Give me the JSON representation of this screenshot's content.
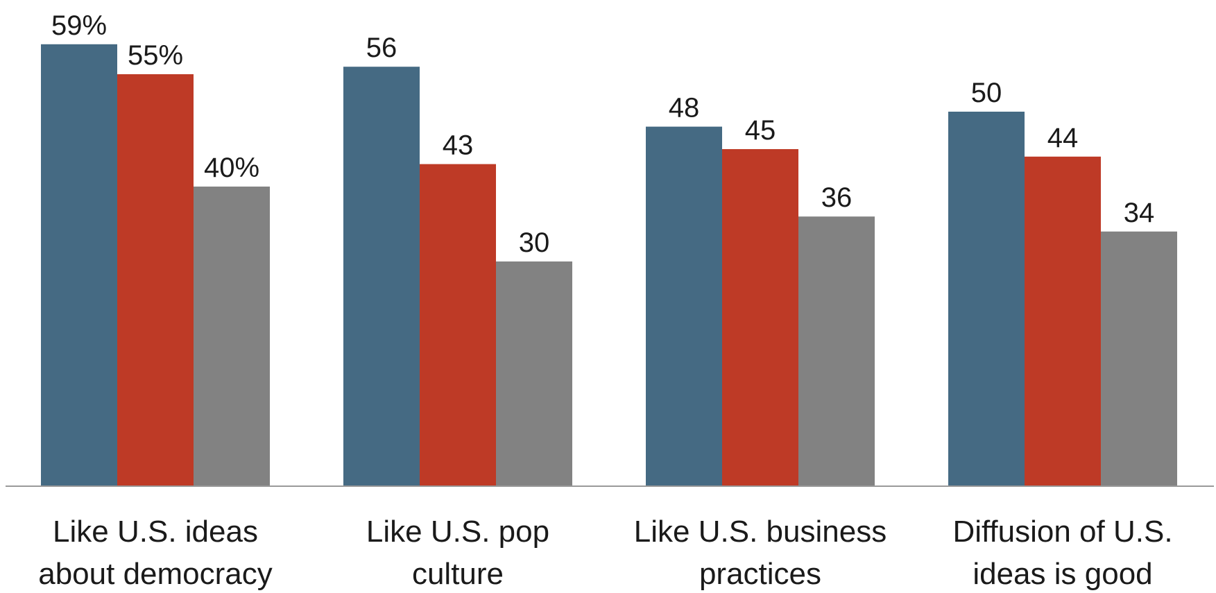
{
  "chart_data": {
    "type": "bar",
    "categories": [
      [
        "Like U.S. ideas",
        "about democracy"
      ],
      [
        "Like U.S. pop",
        "culture"
      ],
      [
        "Like U.S. business",
        "practices"
      ],
      [
        "Diffusion of U.S.",
        "ideas is good"
      ]
    ],
    "series": [
      {
        "values": [
          59,
          56,
          48,
          50
        ],
        "color": "#456a83"
      },
      {
        "values": [
          55,
          43,
          45,
          44
        ],
        "color": "#be3a26"
      },
      {
        "values": [
          40,
          30,
          36,
          34
        ],
        "color": "#828282"
      }
    ],
    "value_labels": [
      [
        "59%",
        "55%",
        "40%"
      ],
      [
        "56",
        "43",
        "30"
      ],
      [
        "48",
        "45",
        "36"
      ],
      [
        "50",
        "44",
        "34"
      ]
    ],
    "ylim": [
      0,
      65
    ],
    "grid": false,
    "legend": "none",
    "baseline_color": "#9a9a9a"
  }
}
